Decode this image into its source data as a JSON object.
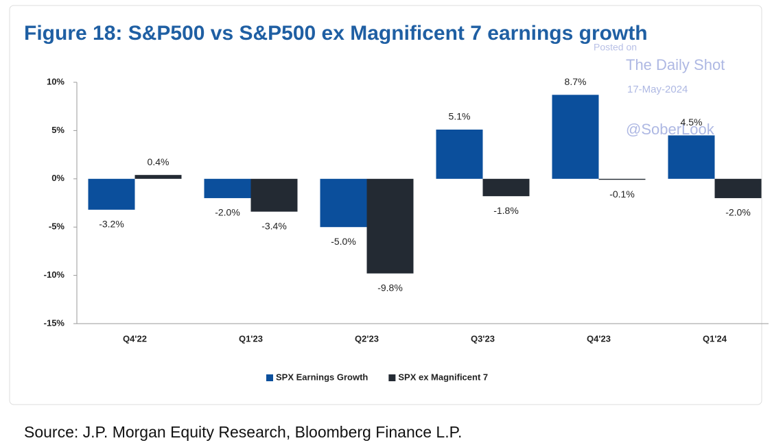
{
  "chart_data": {
    "type": "bar",
    "title": "Figure 18: S&P500 vs S&P500 ex Magnificent 7 earnings growth",
    "categories": [
      "Q4'22",
      "Q1'23",
      "Q2'23",
      "Q3'23",
      "Q4'23",
      "Q1'24"
    ],
    "series": [
      {
        "name": "SPX Earnings Growth",
        "color": "#0b4f9c",
        "values": [
          -3.2,
          -2.0,
          -5.0,
          5.1,
          8.7,
          4.5
        ],
        "value_labels": [
          "-3.2%",
          "-2.0%",
          "-5.0%",
          "5.1%",
          "8.7%",
          "4.5%"
        ]
      },
      {
        "name": "SPX ex Magnificent 7",
        "color": "#232a33",
        "values": [
          0.4,
          -3.4,
          -9.8,
          -1.8,
          -0.1,
          -2.0
        ],
        "value_labels": [
          "0.4%",
          "-3.4%",
          "-9.8%",
          "-1.8%",
          "-0.1%",
          "-2.0%"
        ]
      }
    ],
    "ylim": [
      -15,
      10
    ],
    "yticks": [
      {
        "value": 10,
        "label": "10%"
      },
      {
        "value": 5,
        "label": "5%"
      },
      {
        "value": 0,
        "label": "0%"
      },
      {
        "value": -5,
        "label": "-5%"
      },
      {
        "value": -10,
        "label": "-10%"
      },
      {
        "value": -15,
        "label": "-15%"
      }
    ],
    "legend": "bottom",
    "watermark": [
      "Posted on",
      "The Daily Shot",
      "17-May-2024",
      "@SoberLook"
    ],
    "source": "Source: J.P. Morgan Equity Research, Bloomberg Finance L.P."
  }
}
